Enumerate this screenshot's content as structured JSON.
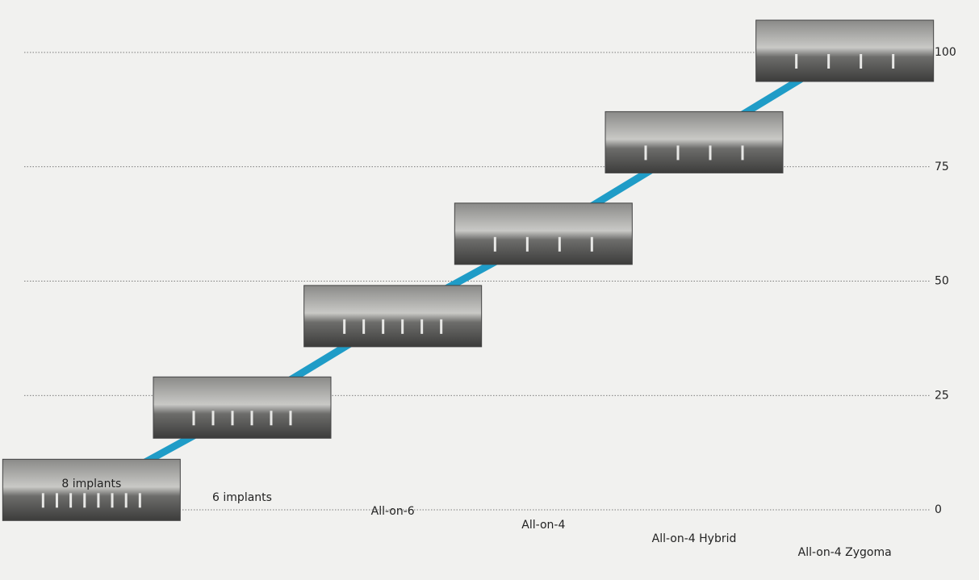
{
  "chart_data": {
    "type": "line",
    "categories": [
      "8 implants",
      "6 implants",
      "All-on-6",
      "All-on-4",
      "All-on-4 Hybrid",
      "All-on-4 Zygoma"
    ],
    "series": [
      {
        "color": "#1f9cc7",
        "values": [
          4,
          22,
          42,
          60,
          80,
          100
        ]
      }
    ],
    "ylim": [
      0,
      100
    ],
    "yticks": [
      0,
      25,
      50,
      75,
      100
    ],
    "grid": true
  }
}
